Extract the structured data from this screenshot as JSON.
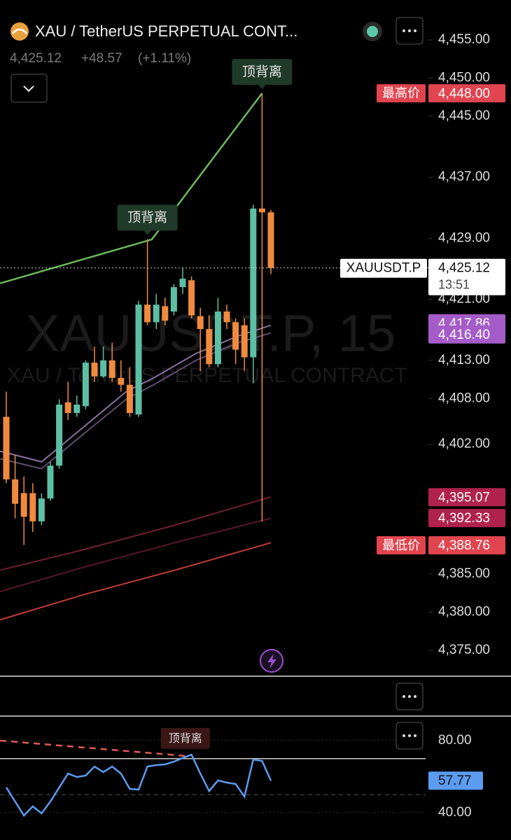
{
  "header": {
    "title": "XAU / TetherUS PERPETUAL CONT...",
    "price": "4,425.12",
    "change": "+48.57",
    "change_pct": "(+1.11%)"
  },
  "chart_data": [
    {
      "type": "candlestick",
      "watermark": "XAUUSDT.P, 15",
      "watermark_subtitle": "XAU / TetherUS PERPETUAL CONTRACT",
      "ylim": [
        4372,
        4460
      ],
      "yticks": [
        {
          "value": 4455,
          "label": "4,455.00"
        },
        {
          "value": 4450,
          "label": "4,450.00"
        },
        {
          "value": 4445,
          "label": "4,445.00"
        },
        {
          "value": 4437,
          "label": "4,437.00"
        },
        {
          "value": 4429,
          "label": "4,429.00"
        },
        {
          "value": 4421,
          "label": "4,421.00"
        },
        {
          "value": 4413,
          "label": "4,413.00"
        },
        {
          "value": 4408,
          "label": "4,408.00"
        },
        {
          "value": 4402,
          "label": "4,402.00"
        },
        {
          "value": 4385,
          "label": "4,385.00"
        },
        {
          "value": 4380,
          "label": "4,380.00"
        },
        {
          "value": 4375,
          "label": "4,375.00"
        }
      ],
      "up_color": "#5cbfa4",
      "down_color": "#f08a3e",
      "open": [
        4405.6,
        4397.4,
        4395.6,
        4395.6,
        4391.9,
        4394.9,
        4399.2,
        4407.5,
        4406.1,
        4407.0,
        4412.7,
        4410.9,
        4413.0,
        4410.7,
        4409.8,
        4405.9,
        4420.3,
        4418.0,
        4420.1,
        4419.4,
        4422.6,
        4423.5,
        4418.8,
        4417.1,
        4412.5,
        4419.4,
        4418.0,
        4417.6,
        4413.4,
        4432.9,
        4432.4
      ],
      "high": [
        4408.9,
        4400.6,
        4397.8,
        4396.9,
        4395.6,
        4399.7,
        4407.9,
        4410.2,
        4408.4,
        4413.0,
        4414.8,
        4414.8,
        4415.3,
        4413.0,
        4412.1,
        4420.8,
        4428.9,
        4421.7,
        4421.2,
        4423.0,
        4425.1,
        4424.0,
        4419.9,
        4418.9,
        4421.2,
        4420.3,
        4418.5,
        4418.5,
        4433.4,
        4448.0,
        4432.7
      ],
      "low": [
        4396.9,
        4392.3,
        4388.8,
        4390.5,
        4391.4,
        4394.6,
        4398.8,
        4405.2,
        4405.6,
        4406.6,
        4410.2,
        4410.7,
        4410.2,
        4408.9,
        4405.6,
        4405.6,
        4417.6,
        4417.1,
        4417.6,
        4418.9,
        4421.7,
        4418.5,
        4411.6,
        4412.1,
        4412.1,
        4417.1,
        4412.5,
        4411.6,
        4410.0,
        4391.9,
        4424.3
      ],
      "close": [
        4397.4,
        4394.2,
        4392.5,
        4391.9,
        4394.9,
        4399.2,
        4407.2,
        4406.1,
        4407.2,
        4412.7,
        4410.9,
        4413.0,
        4410.7,
        4409.8,
        4406.1,
        4420.3,
        4418.0,
        4420.3,
        4418.2,
        4422.6,
        4423.7,
        4418.9,
        4417.1,
        4412.5,
        4419.4,
        4418.0,
        4414.4,
        4413.4,
        4432.9,
        4432.4,
        4425.12
      ],
      "overlays": [
        {
          "color": "#8a6f9e",
          "x": [
            -0.7,
            4,
            8.8,
            13.6,
            16.7,
            21.5,
            26.3,
            30
          ],
          "values": [
            4401.1,
            4399.7,
            4404.3,
            4408.9,
            4410.7,
            4413.9,
            4416.2,
            4417.6
          ]
        },
        {
          "color": "#5e4b70",
          "x": [
            -0.7,
            4,
            8.8,
            13.6,
            16.7,
            21.5,
            26.3,
            30
          ],
          "values": [
            4400.1,
            4398.8,
            4403.4,
            4407.9,
            4409.8,
            4413.0,
            4415.3,
            4416.6
          ]
        },
        {
          "color": "#6e2030",
          "x": [
            -0.7,
            8.8,
            19.1,
            30
          ],
          "values": [
            4385.5,
            4388.2,
            4391.4,
            4395.1
          ]
        },
        {
          "color": "#55182a",
          "x": [
            -0.7,
            8.8,
            19.1,
            30
          ],
          "values": [
            4382.7,
            4385.9,
            4389.1,
            4392.3
          ]
        },
        {
          "color": "#c23a3a",
          "x": [
            -0.7,
            8.8,
            19.1,
            30
          ],
          "values": [
            4379.0,
            4382.3,
            4385.5,
            4389.1
          ]
        },
        {
          "color": "#6cb85c",
          "x": [
            -0.7,
            16.5,
            29
          ],
          "values": [
            4423.1,
            4428.85,
            4448.0
          ]
        }
      ],
      "annotations": [
        {
          "text": "顶背离",
          "candle": 16
        },
        {
          "text": "顶背离",
          "candle": 29
        }
      ],
      "price_labels": [
        {
          "value": 4448.0,
          "label": "4,448.00",
          "tag": "最高价",
          "color": "#e0454f"
        },
        {
          "value": 4417.86,
          "label": "4,417.86",
          "color": "#a45cc8"
        },
        {
          "value": 4416.4,
          "label": "4,416.40",
          "color": "#a45cc8"
        },
        {
          "value": 4395.07,
          "label": "4,395.07",
          "color": "#b0224e"
        },
        {
          "value": 4392.33,
          "label": "4,392.33",
          "color": "#b0224e"
        },
        {
          "value": 4388.76,
          "label": "4,388.76",
          "tag": "最低价",
          "color": "#e0454f"
        }
      ],
      "current_price": {
        "value": 4425.12,
        "label": "4,425.12",
        "symbol": "XAUUSDT.P",
        "countdown": "13:51"
      }
    },
    {
      "type": "line",
      "ylim": [
        25,
        93
      ],
      "yticks": [
        {
          "value": 80,
          "label": "80.00"
        },
        {
          "value": 40,
          "label": "40.00"
        }
      ],
      "levels": [
        70,
        50
      ],
      "color": "#5b9bf0",
      "values": [
        54.0,
        46.2,
        38.4,
        43.5,
        39.6,
        46.2,
        54.0,
        61.7,
        59.8,
        60.6,
        65.6,
        62.5,
        65.6,
        61.7,
        53.2,
        52.8,
        65.6,
        66.4,
        66.8,
        68.3,
        70.3,
        72.2,
        61.7,
        52.0,
        57.9,
        56.7,
        55.9,
        48.9,
        69.5,
        68.7,
        57.77
      ],
      "divergence": {
        "color": "#e05a5a",
        "x": [
          -0.7,
          20.3
        ],
        "values": [
          80,
          71.5
        ]
      },
      "annotation": {
        "text": "顶背离",
        "candle": 20.3
      },
      "current_label": {
        "value": 57.77,
        "label": "57.77"
      }
    }
  ]
}
